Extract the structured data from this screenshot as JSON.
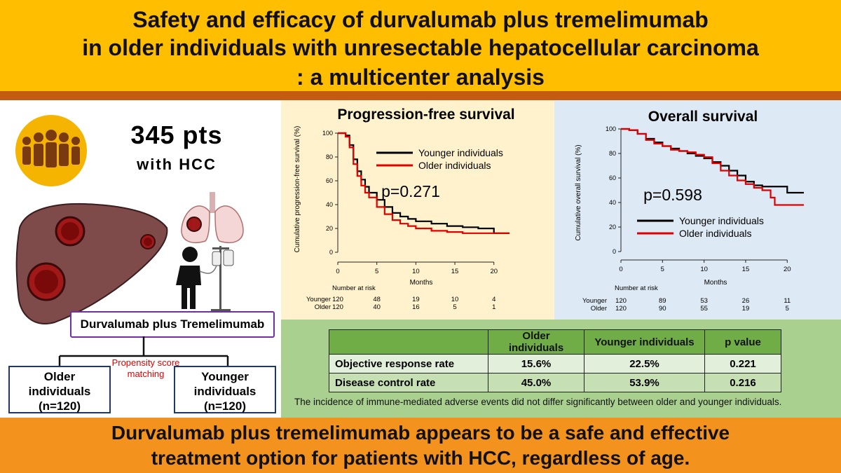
{
  "header": {
    "title_lines": [
      "Safety and efficacy of durvalumab plus tremelimumab",
      "in older individuals with unresectable hepatocellular carcinoma",
      ": a multicenter analysis"
    ]
  },
  "left": {
    "pts_count": "345 pts",
    "pts_sub": "with HCC",
    "drug": "Durvalumab plus Tremelimumab",
    "psm": "Propensity score matching",
    "older_label": [
      "Older",
      "individuals",
      "(n=120)"
    ],
    "younger_label": [
      "Younger",
      "individuals",
      "(n=120)"
    ],
    "icons": [
      "people-group-icon",
      "liver-icon",
      "lungs-icon",
      "patient-iv-icon"
    ]
  },
  "pfs_panel": {
    "p_value": "p=0.271"
  },
  "os_panel": {
    "p_value": "p=0.598"
  },
  "chart_data": [
    {
      "type": "line",
      "title": "Progression-free survival",
      "xlabel": "Months",
      "ylabel": "Cumulative progression-free survival (%)",
      "xlim": [
        0,
        22
      ],
      "ylim": [
        0,
        100
      ],
      "xticks": [
        0,
        5,
        10,
        15,
        20
      ],
      "yticks": [
        0,
        20,
        40,
        60,
        80,
        100
      ],
      "legend": "top-right",
      "series": [
        {
          "name": "Younger individuals",
          "color": "#000000",
          "x": [
            0,
            1,
            1.5,
            2,
            2.5,
            3,
            3.5,
            4,
            5,
            6,
            7,
            8,
            9,
            10,
            12,
            14,
            16,
            18,
            19,
            20,
            22
          ],
          "y": [
            100,
            98,
            90,
            78,
            68,
            61,
            55,
            50,
            44,
            38,
            33,
            30,
            28,
            26,
            24,
            22,
            21,
            20,
            20,
            16,
            16
          ]
        },
        {
          "name": "Older individuals",
          "color": "#e00000",
          "x": [
            0,
            1,
            1.5,
            2,
            2.5,
            3,
            3.5,
            4,
            5,
            6,
            7,
            8,
            9,
            10,
            12,
            14,
            16,
            18,
            20,
            22
          ],
          "y": [
            100,
            97,
            88,
            74,
            64,
            56,
            50,
            46,
            38,
            32,
            27,
            24,
            22,
            20,
            18,
            17,
            16,
            16,
            16,
            16
          ]
        }
      ],
      "risk_table": {
        "title": "Number at risk",
        "rows": [
          {
            "label": "Younger",
            "values": [
              "120",
              "48",
              "19",
              "10",
              "4"
            ]
          },
          {
            "label": "Older",
            "values": [
              "120",
              "40",
              "16",
              "5",
              "1"
            ]
          }
        ]
      }
    },
    {
      "type": "line",
      "title": "Overall survival",
      "xlabel": "Months",
      "ylabel": "Cumulative overall survival (%)",
      "xlim": [
        0,
        22
      ],
      "ylim": [
        0,
        100
      ],
      "xticks": [
        0,
        5,
        10,
        15,
        20
      ],
      "yticks": [
        0,
        20,
        40,
        60,
        80,
        100
      ],
      "legend": "bottom-right",
      "series": [
        {
          "name": "Younger individuals",
          "color": "#000000",
          "x": [
            0,
            1,
            2,
            3,
            4,
            5,
            6,
            7,
            8,
            9,
            10,
            11,
            12,
            13,
            14,
            15,
            16,
            17,
            18,
            19,
            20,
            21,
            22
          ],
          "y": [
            100,
            99,
            96,
            92,
            89,
            86,
            84,
            82,
            80,
            78,
            76,
            73,
            70,
            66,
            62,
            57,
            54,
            53,
            53,
            53,
            48,
            48,
            48
          ]
        },
        {
          "name": "Older individuals",
          "color": "#e00000",
          "x": [
            0,
            1,
            2,
            3,
            4,
            5,
            6,
            7,
            8,
            9,
            10,
            11,
            12,
            13,
            14,
            15,
            16,
            17,
            18,
            18.5,
            20,
            22
          ],
          "y": [
            100,
            99,
            96,
            91,
            88,
            86,
            83,
            82,
            81,
            79,
            77,
            72,
            66,
            62,
            58,
            55,
            52,
            50,
            44,
            38,
            38,
            38
          ]
        }
      ],
      "risk_table": {
        "title": "Number at risk",
        "rows": [
          {
            "label": "Younger",
            "values": [
              "120",
              "89",
              "53",
              "26",
              "11"
            ]
          },
          {
            "label": "Older",
            "values": [
              "120",
              "90",
              "55",
              "19",
              "5"
            ]
          }
        ]
      }
    }
  ],
  "results_table": {
    "headers": [
      "",
      "Older individuals",
      "Younger individuals",
      "p value"
    ],
    "rows": [
      [
        "Objective response rate",
        "15.6%",
        "22.5%",
        "0.221"
      ],
      [
        "Disease control rate",
        "45.0%",
        "53.9%",
        "0.216"
      ]
    ]
  },
  "footnote": "The incidence of immune-mediated adverse events did not differ significantly between older and younger individuals.",
  "conclusion_lines": [
    "Durvalumab plus tremelimumab appears to be a safe and effective",
    "treatment option for patients with HCC, regardless of age."
  ],
  "colors": {
    "header_bg": "#ffbe00",
    "header_rule": "#c55a11",
    "pfs_bg": "#fff2cc",
    "os_bg": "#dde9f5",
    "table_panel_bg": "#a9d08e",
    "conclusion_bg": "#f3921d",
    "younger": "#000000",
    "older": "#e00000"
  }
}
